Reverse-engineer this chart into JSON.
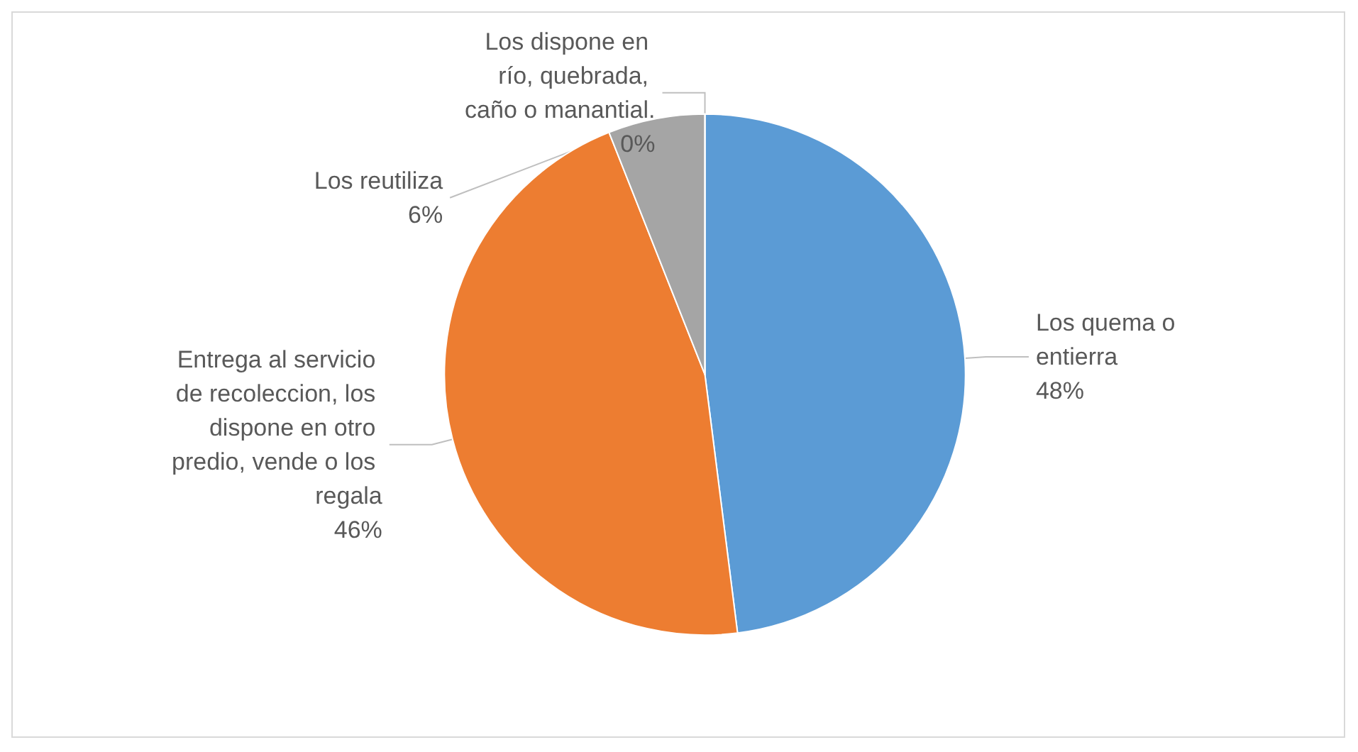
{
  "chart_data": {
    "type": "pie",
    "categories": [
      "Los quema o entierra",
      "Entrega al servicio de recoleccion, los dispone en otro predio, vende o los regala",
      "Los reutiliza",
      "Los dispone en río, quebrada, caño o manantial."
    ],
    "values": [
      48,
      46,
      6,
      0
    ],
    "colors": [
      "#5b9bd5",
      "#ed7d31",
      "#a5a5a5",
      "#ffc000"
    ],
    "value_labels": [
      "48%",
      "46%",
      "6%",
      "0%"
    ],
    "legend": false
  }
}
